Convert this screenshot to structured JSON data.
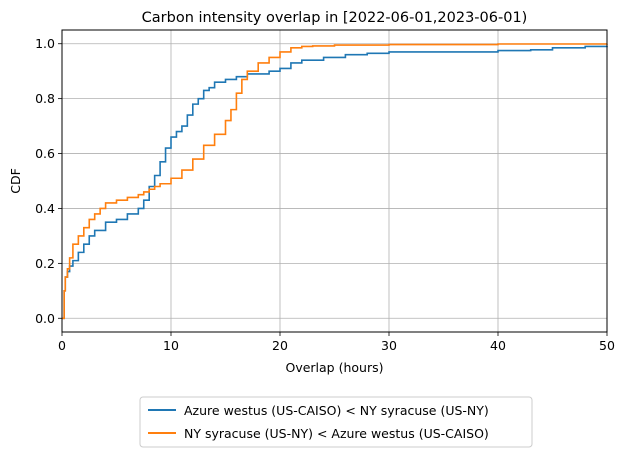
{
  "chart_data": {
    "type": "line",
    "title": "Carbon intensity overlap in [2022-06-01,2023-06-01)",
    "xlabel": "Overlap (hours)",
    "ylabel": "CDF",
    "xlim": [
      0,
      50
    ],
    "ylim": [
      -0.05,
      1.05
    ],
    "xticks": [
      "0",
      "10",
      "20",
      "30",
      "40",
      "50"
    ],
    "yticks": [
      "0.0",
      "0.2",
      "0.4",
      "0.6",
      "0.8",
      "1.0"
    ],
    "grid": true,
    "legend_position": "bottom (below chart)",
    "series": [
      {
        "name": "Azure westus (US-CAISO) < NY syracuse (US-NY)",
        "color": "#1f77b4",
        "x": [
          0,
          0.2,
          0.3,
          0.5,
          0.7,
          1,
          1.5,
          2,
          2.5,
          3,
          4,
          5,
          6,
          7,
          7.5,
          8,
          8.5,
          9,
          9.5,
          10,
          10.5,
          11,
          11.5,
          12,
          12.5,
          13,
          13.5,
          14,
          15,
          16,
          17,
          18,
          19,
          20,
          21,
          22,
          24,
          26,
          28,
          30,
          35,
          40,
          43,
          45,
          48,
          50
        ],
        "y": [
          0,
          0.1,
          0.15,
          0.17,
          0.19,
          0.21,
          0.24,
          0.27,
          0.3,
          0.32,
          0.35,
          0.36,
          0.38,
          0.4,
          0.43,
          0.48,
          0.52,
          0.57,
          0.62,
          0.66,
          0.68,
          0.7,
          0.74,
          0.78,
          0.8,
          0.83,
          0.84,
          0.86,
          0.87,
          0.88,
          0.89,
          0.89,
          0.9,
          0.91,
          0.93,
          0.94,
          0.95,
          0.96,
          0.965,
          0.97,
          0.97,
          0.975,
          0.978,
          0.985,
          0.99,
          0.992
        ]
      },
      {
        "name": "NY syracuse (US-NY) < Azure westus (US-CAISO)",
        "color": "#ff7f0e",
        "x": [
          0,
          0.2,
          0.3,
          0.5,
          0.7,
          1,
          1.5,
          2,
          2.5,
          3,
          3.5,
          4,
          5,
          6,
          7,
          7.5,
          8,
          8.5,
          9,
          10,
          11,
          12,
          13,
          14,
          15,
          15.5,
          16,
          16.5,
          17,
          18,
          19,
          20,
          21,
          22,
          23,
          25,
          30,
          40,
          50
        ],
        "y": [
          0,
          0.1,
          0.15,
          0.18,
          0.22,
          0.27,
          0.3,
          0.33,
          0.36,
          0.38,
          0.4,
          0.42,
          0.43,
          0.44,
          0.45,
          0.46,
          0.47,
          0.48,
          0.49,
          0.51,
          0.54,
          0.58,
          0.63,
          0.67,
          0.72,
          0.76,
          0.82,
          0.87,
          0.9,
          0.93,
          0.95,
          0.97,
          0.985,
          0.99,
          0.992,
          0.995,
          0.997,
          0.999,
          1.0
        ]
      }
    ]
  }
}
